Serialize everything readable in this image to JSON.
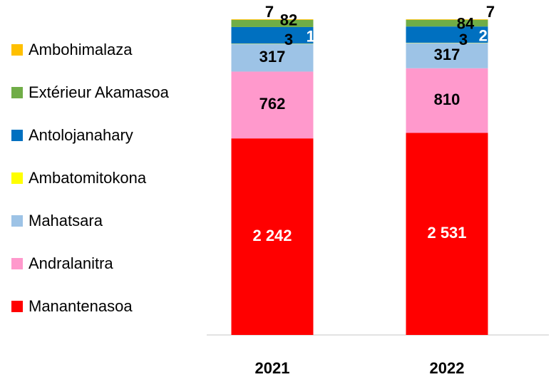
{
  "chart_data": {
    "type": "bar",
    "stacking": "percent",
    "categories": [
      "2021",
      "2022"
    ],
    "series": [
      {
        "name": "Manantenasoa",
        "color": "#ff0000",
        "values": [
          2242,
          2531
        ],
        "value_labels": [
          "2 242",
          "2 531"
        ]
      },
      {
        "name": "Andralanitra",
        "color": "#ff99cc",
        "values": [
          762,
          810
        ]
      },
      {
        "name": "Mahatsara",
        "color": "#9dc3e6",
        "values": [
          317,
          317
        ]
      },
      {
        "name": "Ambatomitokona",
        "color": "#ffff00",
        "values": [
          3,
          3
        ]
      },
      {
        "name": "Antolojanahary",
        "color": "#0070c0",
        "values": [
          188,
          203
        ]
      },
      {
        "name": "Extérieur Akamasoa",
        "color": "#70ad47",
        "values": [
          82,
          84
        ]
      },
      {
        "name": "Ambohimalaza",
        "color": "#ffc000",
        "values": [
          7,
          7
        ]
      }
    ],
    "legend": "left"
  }
}
